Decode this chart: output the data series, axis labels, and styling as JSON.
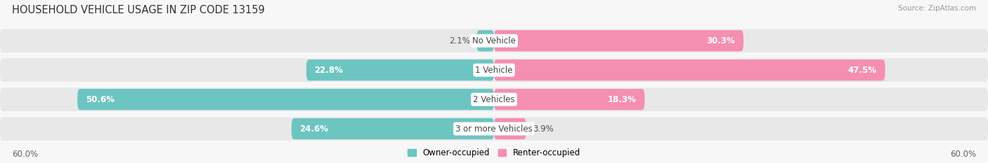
{
  "title": "HOUSEHOLD VEHICLE USAGE IN ZIP CODE 13159",
  "source": "Source: ZipAtlas.com",
  "categories": [
    "No Vehicle",
    "1 Vehicle",
    "2 Vehicles",
    "3 or more Vehicles"
  ],
  "owner_values": [
    2.1,
    22.8,
    50.6,
    24.6
  ],
  "renter_values": [
    30.3,
    47.5,
    18.3,
    3.9
  ],
  "owner_color": "#6cc5c1",
  "renter_color": "#f48fb1",
  "owner_label": "Owner-occupied",
  "renter_label": "Renter-occupied",
  "axis_limit": 60.0,
  "fig_bg_color": "#f7f7f7",
  "bar_bg_color": "#e8e8e8",
  "title_fontsize": 10.5,
  "bar_label_fontsize": 8.5,
  "tick_fontsize": 8.5,
  "source_fontsize": 7.5,
  "legend_fontsize": 8.5
}
